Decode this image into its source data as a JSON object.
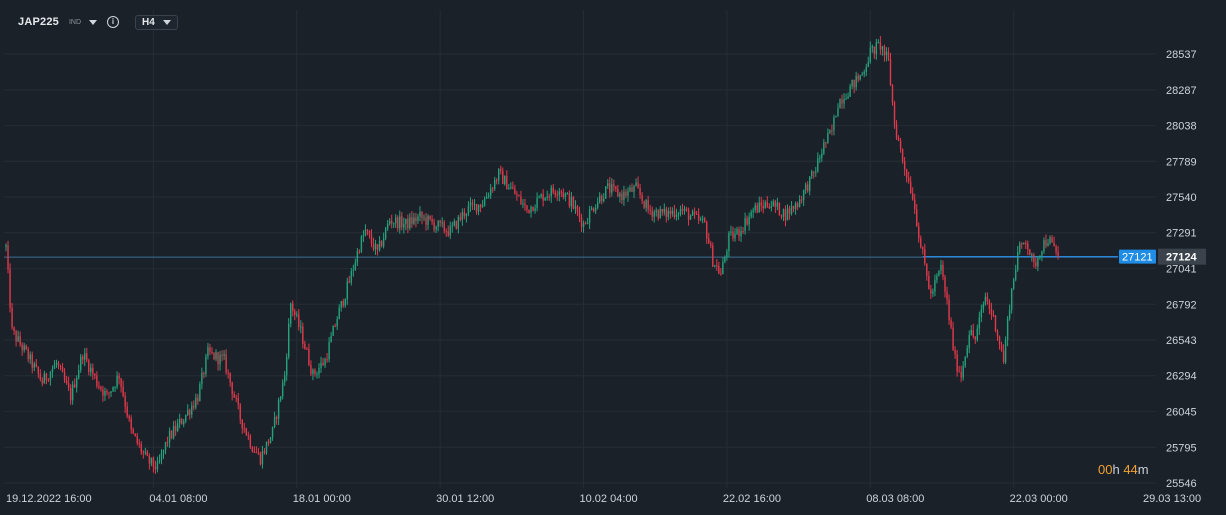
{
  "toolbar": {
    "symbol": "JAP225",
    "market": "IND",
    "info_glyph": "i",
    "timeframe": "H4"
  },
  "countdown": {
    "hours": "00",
    "hours_unit": "h",
    "minutes": "44",
    "minutes_unit": "m"
  },
  "colors": {
    "background": "#1a2129",
    "grid": "#242d36",
    "up": "#26a17b",
    "down": "#e0394a",
    "price_line": "#2a86d8",
    "label_blue": "#1f8ce6"
  },
  "chart_data": {
    "type": "candlestick",
    "timeframe": "H4",
    "ylim": [
      25546,
      28680
    ],
    "y_ticks": [
      28537,
      28287,
      28038,
      27789,
      27540,
      27291,
      27041,
      26792,
      26543,
      26294,
      26045,
      25795,
      25546
    ],
    "x_tick_labels": [
      "19.12.2022  16:00",
      "04.01  08:00",
      "18.01  00:00",
      "30.01  12:00",
      "10.02  04:00",
      "22.02  16:00",
      "08.03  08:00",
      "22.03  00:00",
      "29.03  13:00"
    ],
    "x_tick_index": [
      0,
      71,
      142,
      213,
      284,
      355,
      426,
      497,
      568
    ],
    "current_price": 27124,
    "crosshair_price": 27121,
    "guide_line_price": 27124,
    "close_path": [
      [
        0,
        27190
      ],
      [
        3,
        26600
      ],
      [
        10,
        26450
      ],
      [
        18,
        26250
      ],
      [
        25,
        26380
      ],
      [
        32,
        26150
      ],
      [
        38,
        26450
      ],
      [
        45,
        26250
      ],
      [
        50,
        26150
      ],
      [
        56,
        26300
      ],
      [
        62,
        25900
      ],
      [
        66,
        25800
      ],
      [
        70,
        25700
      ],
      [
        75,
        25650
      ],
      [
        80,
        25850
      ],
      [
        88,
        26000
      ],
      [
        95,
        26150
      ],
      [
        100,
        26450
      ],
      [
        108,
        26400
      ],
      [
        116,
        26000
      ],
      [
        122,
        25800
      ],
      [
        126,
        25720
      ],
      [
        132,
        25900
      ],
      [
        138,
        26300
      ],
      [
        141,
        26800
      ],
      [
        146,
        26600
      ],
      [
        152,
        26300
      ],
      [
        158,
        26400
      ],
      [
        164,
        26700
      ],
      [
        170,
        26950
      ],
      [
        175,
        27200
      ],
      [
        178,
        27300
      ],
      [
        184,
        27150
      ],
      [
        190,
        27380
      ],
      [
        198,
        27350
      ],
      [
        205,
        27400
      ],
      [
        212,
        27350
      ],
      [
        220,
        27300
      ],
      [
        228,
        27450
      ],
      [
        236,
        27500
      ],
      [
        244,
        27700
      ],
      [
        250,
        27600
      ],
      [
        258,
        27450
      ],
      [
        266,
        27550
      ],
      [
        274,
        27600
      ],
      [
        280,
        27500
      ],
      [
        286,
        27350
      ],
      [
        292,
        27500
      ],
      [
        298,
        27600
      ],
      [
        305,
        27550
      ],
      [
        312,
        27600
      ],
      [
        318,
        27450
      ],
      [
        326,
        27420
      ],
      [
        334,
        27450
      ],
      [
        340,
        27400
      ],
      [
        346,
        27350
      ],
      [
        350,
        27100
      ],
      [
        354,
        27000
      ],
      [
        358,
        27250
      ],
      [
        363,
        27300
      ],
      [
        370,
        27450
      ],
      [
        378,
        27500
      ],
      [
        386,
        27420
      ],
      [
        392,
        27500
      ],
      [
        396,
        27600
      ],
      [
        400,
        27700
      ],
      [
        405,
        27900
      ],
      [
        409,
        28000
      ],
      [
        412,
        28200
      ],
      [
        418,
        28300
      ],
      [
        424,
        28400
      ],
      [
        428,
        28550
      ],
      [
        433,
        28600
      ],
      [
        437,
        28480
      ],
      [
        440,
        28050
      ],
      [
        444,
        27800
      ],
      [
        449,
        27550
      ],
      [
        453,
        27200
      ],
      [
        458,
        26850
      ],
      [
        463,
        27050
      ],
      [
        466,
        26800
      ],
      [
        470,
        26400
      ],
      [
        473,
        26300
      ],
      [
        477,
        26600
      ],
      [
        480,
        26550
      ],
      [
        485,
        26850
      ],
      [
        490,
        26650
      ],
      [
        494,
        26400
      ],
      [
        497,
        26800
      ],
      [
        501,
        27150
      ],
      [
        505,
        27250
      ],
      [
        509,
        27050
      ],
      [
        513,
        27200
      ],
      [
        516,
        27250
      ],
      [
        521,
        27124
      ]
    ]
  }
}
